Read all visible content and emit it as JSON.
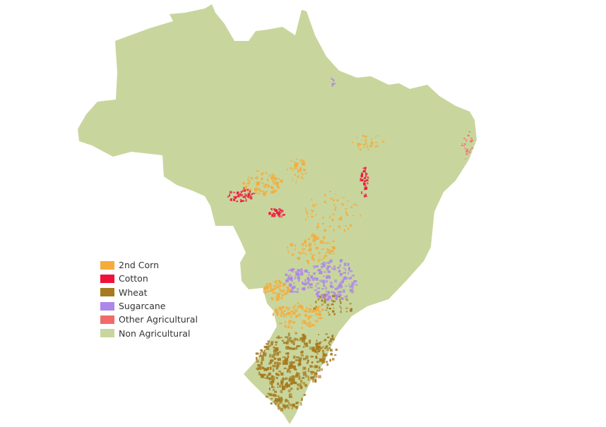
{
  "legend": {
    "items": [
      {
        "label": "2nd Corn",
        "color": "#f5ac3a"
      },
      {
        "label": "Cotton",
        "color": "#f0123a"
      },
      {
        "label": "Wheat",
        "color": "#a67a1e"
      },
      {
        "label": "Sugarcane",
        "color": "#ad86ea"
      },
      {
        "label": "Other Agricultural",
        "color": "#f26b6b"
      },
      {
        "label": "Non Agricultural",
        "color": "#c8d69e"
      }
    ]
  },
  "map": {
    "background_color": "#ffffff",
    "land_color": "#c8d69e"
  }
}
